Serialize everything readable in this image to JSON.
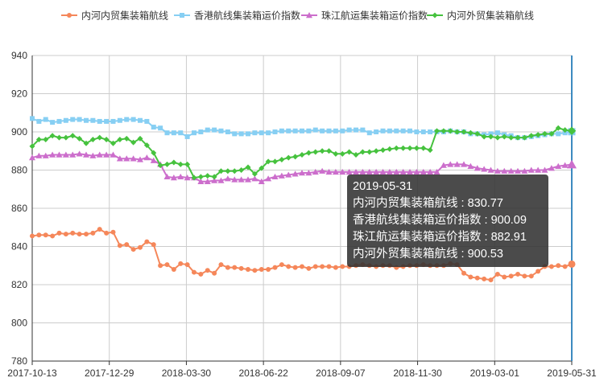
{
  "chart_data": {
    "type": "line",
    "title": "",
    "xlabel": "",
    "ylabel": "",
    "ylim": [
      780,
      940
    ],
    "yticks": [
      "780",
      "800",
      "820",
      "840",
      "860",
      "880",
      "900",
      "920",
      "940"
    ],
    "xticks": [
      "2017-10-13",
      "2017-12-29",
      "2018-03-30",
      "2018-06-22",
      "2018-09-07",
      "2018-11-30",
      "2019-03-01",
      "2019-05-31"
    ],
    "grid": true,
    "legend_position": "top",
    "series": [
      {
        "name": "内河内贸集装箱航线",
        "color": "#f5875a",
        "marker": "circle",
        "values": [
          845.5,
          846,
          846,
          845.5,
          847,
          846.5,
          847,
          846.5,
          846.5,
          847,
          849,
          847,
          847.5,
          840.5,
          841,
          838.5,
          839.5,
          842.5,
          841,
          830,
          830.5,
          828,
          831,
          830.5,
          826.5,
          825.5,
          827.5,
          826,
          830.5,
          829,
          829,
          828.5,
          828,
          827.5,
          828,
          828,
          829,
          830.5,
          829.5,
          829,
          829.5,
          828.5,
          829.5,
          829.5,
          829.5,
          829,
          829.5,
          829.5,
          830,
          830.5,
          830,
          829.5,
          830,
          830,
          829,
          829.5,
          830,
          830,
          830.5,
          830,
          830,
          830,
          831,
          830.5,
          826,
          824,
          823.5,
          823,
          822.5,
          825.5,
          824,
          824.5,
          825.5,
          824.5,
          824.5,
          827,
          829.5,
          829.5,
          830,
          829.5,
          830.77
        ]
      },
      {
        "name": "香港航线集装箱运价指数",
        "color": "#87cff3",
        "marker": "square",
        "values": [
          907,
          905.5,
          906.5,
          905,
          905.5,
          906,
          906.5,
          906.5,
          906,
          906,
          905.5,
          905.5,
          905.5,
          906,
          906.5,
          906.5,
          906,
          905.5,
          902.5,
          902,
          899.5,
          899.5,
          899.5,
          897.5,
          899.5,
          900,
          901,
          901,
          900.5,
          900,
          899,
          899,
          899,
          899.5,
          899.5,
          899.5,
          900,
          900.5,
          900.5,
          900.5,
          900.5,
          900.5,
          901,
          900.5,
          900.5,
          900.5,
          900.5,
          901,
          901,
          901,
          899.5,
          900,
          900.5,
          900.5,
          900.5,
          900.5,
          900.5,
          900,
          900,
          900,
          900,
          900,
          900.5,
          900,
          900,
          899,
          899,
          898.5,
          899,
          899.5,
          898.5,
          898,
          897,
          897,
          897.5,
          898,
          898.5,
          899,
          899,
          899.5,
          900.09
        ]
      },
      {
        "name": "珠江航运集装箱运价指数",
        "color": "#cc6ecc",
        "marker": "triangle",
        "values": [
          886.5,
          887.5,
          887.5,
          888,
          888,
          888,
          888,
          888.5,
          888,
          887.5,
          888,
          888,
          888,
          886,
          886,
          886,
          885.5,
          886.5,
          885,
          883,
          876.5,
          876,
          876.5,
          876,
          876,
          874,
          874,
          874.5,
          874.5,
          875.5,
          875,
          875,
          875,
          875.5,
          874,
          875.5,
          876.5,
          877,
          877.5,
          878,
          878.5,
          878.5,
          879,
          879.5,
          879,
          879,
          879,
          879,
          879,
          879,
          879,
          879,
          879,
          879,
          879,
          879,
          879,
          879,
          879,
          879,
          879,
          882.5,
          883,
          883,
          883,
          882,
          881,
          880.5,
          880,
          879.5,
          879.5,
          879.5,
          879.5,
          879.5,
          880,
          880,
          880,
          881,
          882,
          882.5,
          882.91
        ]
      },
      {
        "name": "内河外贸集装箱航线",
        "color": "#46c23e",
        "marker": "diamond",
        "values": [
          892.5,
          896,
          896,
          898,
          897,
          897,
          898,
          896.5,
          894,
          896,
          897,
          896,
          894,
          896,
          896.5,
          894.5,
          896.5,
          893,
          889,
          882.5,
          883,
          884,
          883,
          883,
          876,
          876.5,
          877,
          876.5,
          879.5,
          879.5,
          879.5,
          880,
          881.5,
          878,
          881,
          884.5,
          884.5,
          885.5,
          886.5,
          887,
          888,
          889,
          889.5,
          890,
          890,
          888.5,
          888.5,
          889.5,
          888,
          889.5,
          889.5,
          890,
          890.5,
          891,
          891.5,
          891.5,
          891.5,
          891.5,
          891.5,
          890.5,
          900.5,
          900.5,
          900.5,
          900,
          900,
          899.5,
          899,
          897.5,
          897.5,
          897,
          897.5,
          897,
          897,
          897,
          898,
          898.5,
          899,
          899,
          902,
          901,
          900.53
        ]
      }
    ]
  },
  "tooltip": {
    "date": "2019-05-31",
    "rows": [
      "内河内贸集装箱航线 : 830.77",
      "香港航线集装箱运价指数 : 900.09",
      "珠江航运集装箱运价指数 : 882.91",
      "内河外贸集装箱航线 : 900.53"
    ]
  }
}
